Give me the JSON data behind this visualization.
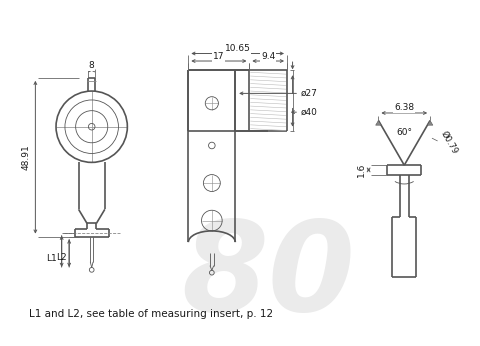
{
  "background_color": "#ffffff",
  "line_color": "#555555",
  "dim_color": "#333333",
  "text_color": "#1a1a1a",
  "annotations": {
    "dim_8": "8",
    "dim_4891": "48.91",
    "dim_1065": "10.65",
    "dim_94": "9.4",
    "dim_17": "17",
    "dim_27": "ø27",
    "dim_40": "ø40",
    "dim_60": "60°",
    "dim_638": "6.38",
    "dim_079": "Ø0.79",
    "dim_16": "1.6",
    "dim_L1": "L1",
    "dim_L2": "L2",
    "caption": "L1 and L2, see table of measuring insert, p. 12"
  },
  "figsize": [
    4.8,
    3.46
  ],
  "dpi": 100
}
